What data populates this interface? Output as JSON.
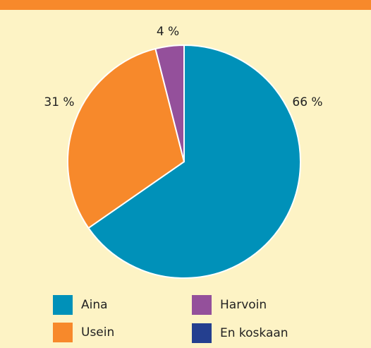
{
  "chart_data": {
    "type": "pie",
    "categories": [
      "Aina",
      "Usein",
      "Harvoin",
      "En koskaan"
    ],
    "values": [
      66,
      31,
      4,
      0
    ],
    "value_labels": [
      "66 %",
      "31 %",
      "4 %",
      null
    ],
    "colors": [
      "#0091b9",
      "#f7892b",
      "#94509b",
      "#243f8f"
    ]
  }
}
